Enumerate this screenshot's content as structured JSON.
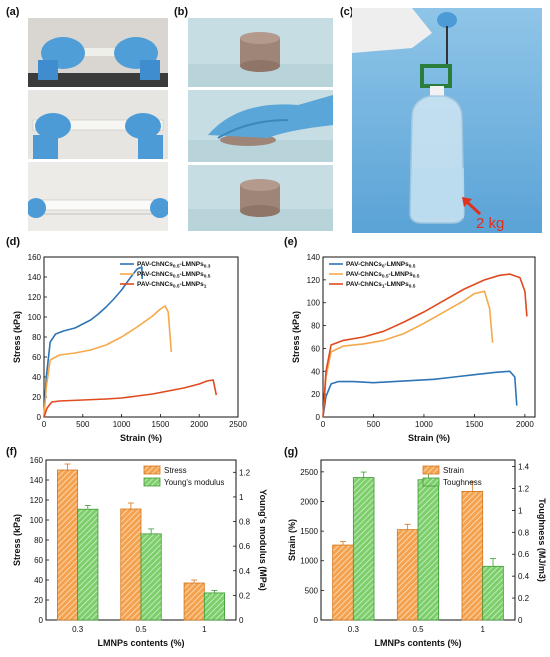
{
  "labels": {
    "a": "(a)",
    "b": "(b)",
    "c": "(c)",
    "d": "(d)",
    "e": "(e)",
    "f": "(f)",
    "g": "(g)"
  },
  "photo_c": {
    "weight_label": "2 kg"
  },
  "colors": {
    "blue": "#2e75b6",
    "orange": "#f5a94a",
    "red": "#e04a1f",
    "bar_orange": "#f4a24e",
    "bar_green": "#7ccf6a",
    "arrow_red": "#e0301e"
  },
  "chart_data": [
    {
      "id": "d",
      "type": "line",
      "xlabel": "Strain (%)",
      "ylabel": "Stress (kPa)",
      "xlim": [
        0,
        2500
      ],
      "ylim": [
        0,
        160
      ],
      "xticks": [
        0,
        500,
        1000,
        1500,
        2000,
        2500
      ],
      "yticks": [
        0,
        20,
        40,
        60,
        80,
        100,
        120,
        140,
        160
      ],
      "legend_position": "top-right",
      "series": [
        {
          "name": "PAV-ChNCs0.5-LMNPs0.3",
          "name_parts": [
            "PAV-ChNCs",
            "0.5",
            "-LMNPs",
            "0.3"
          ],
          "color": "#2e75b6",
          "x": [
            0,
            30,
            80,
            150,
            250,
            400,
            500,
            600,
            700,
            800,
            900,
            1000,
            1100,
            1200,
            1260,
            1265
          ],
          "y": [
            0,
            40,
            75,
            83,
            86,
            89,
            93,
            97,
            103,
            110,
            118,
            127,
            138,
            148,
            150,
            138
          ]
        },
        {
          "name": "PAV-ChNCs0.5-LMNPs0.5",
          "name_parts": [
            "PAV-ChNCs",
            "0.5",
            "-LMNPs",
            "0.5"
          ],
          "color": "#f5a94a",
          "x": [
            0,
            30,
            80,
            200,
            400,
            600,
            800,
            1000,
            1200,
            1400,
            1500,
            1560,
            1600,
            1640
          ],
          "y": [
            0,
            30,
            57,
            62,
            64,
            67,
            72,
            80,
            90,
            101,
            108,
            111,
            105,
            65
          ]
        },
        {
          "name": "PAV-ChNCs0.5-LMNPs1",
          "name_parts": [
            "PAV-ChNCs",
            "0.5",
            "-LMNPs",
            "1"
          ],
          "color": "#e04a1f",
          "x": [
            0,
            40,
            100,
            200,
            500,
            800,
            1000,
            1200,
            1400,
            1600,
            1800,
            2000,
            2100,
            2180,
            2220
          ],
          "y": [
            0,
            9,
            15,
            16,
            17,
            18,
            19,
            21,
            23,
            26,
            29,
            33,
            36,
            37,
            22
          ]
        }
      ]
    },
    {
      "id": "e",
      "type": "line",
      "xlabel": "Strain (%)",
      "ylabel": "Stress (kPa)",
      "xlim": [
        0,
        2100
      ],
      "ylim": [
        0,
        140
      ],
      "xticks": [
        0,
        500,
        1000,
        1500,
        2000
      ],
      "yticks": [
        0,
        20,
        40,
        60,
        80,
        100,
        120,
        140
      ],
      "legend_position": "top-left",
      "series": [
        {
          "name": "PAV-ChNCs0-LMNPs0.5",
          "name_parts": [
            "PAV-ChNCs",
            "0",
            "-LMNPs",
            "0.5"
          ],
          "color": "#2e75b6",
          "x": [
            0,
            30,
            80,
            150,
            300,
            500,
            700,
            900,
            1100,
            1300,
            1500,
            1700,
            1850,
            1900,
            1920
          ],
          "y": [
            0,
            18,
            29,
            31,
            31,
            30,
            31,
            32,
            33,
            35,
            37,
            39,
            40,
            35,
            10
          ]
        },
        {
          "name": "PAV-ChNCs0.5-LMNPs0.5",
          "name_parts": [
            "PAV-ChNCs",
            "0.5",
            "-LMNPs",
            "0.5"
          ],
          "color": "#f5a94a",
          "x": [
            0,
            30,
            80,
            200,
            400,
            600,
            800,
            1000,
            1200,
            1400,
            1500,
            1600,
            1650,
            1680
          ],
          "y": [
            0,
            35,
            57,
            62,
            64,
            67,
            73,
            82,
            92,
            102,
            108,
            110,
            95,
            65
          ]
        },
        {
          "name": "PAV-ChNCs1-LMNPs0.5",
          "name_parts": [
            "PAV-ChNCs",
            "1",
            "-LMNPs",
            "0.5"
          ],
          "color": "#e04a1f",
          "x": [
            0,
            30,
            80,
            200,
            400,
            600,
            800,
            1000,
            1200,
            1400,
            1600,
            1750,
            1850,
            1950,
            2000,
            2020
          ],
          "y": [
            0,
            40,
            63,
            67,
            70,
            75,
            83,
            92,
            102,
            112,
            120,
            124,
            125,
            122,
            110,
            88
          ]
        }
      ]
    },
    {
      "id": "f",
      "type": "bar",
      "xlabel": "LMNPs contents (%)",
      "ylabel": "Stress (kPa)",
      "ylabel_right": "Young's modulus (MPa)",
      "categories": [
        "0.3",
        "0.5",
        "1"
      ],
      "ylim": [
        0,
        160
      ],
      "ylim_right": [
        0,
        1.3
      ],
      "yticks": [
        0,
        20,
        40,
        60,
        80,
        100,
        120,
        140,
        160
      ],
      "yticks_right": [
        0,
        0.2,
        0.4,
        0.6,
        0.8,
        1.0,
        1.2
      ],
      "legend_position": "top-right",
      "series": [
        {
          "name": "Stress",
          "axis": "left",
          "color": "#f4a24e",
          "values": [
            150,
            111,
            37
          ],
          "errors": [
            6,
            6,
            3
          ]
        },
        {
          "name": "Young's modulus",
          "axis": "right",
          "color": "#7ccf6a",
          "values": [
            0.9,
            0.7,
            0.22
          ],
          "errors": [
            0.03,
            0.04,
            0.02
          ]
        }
      ]
    },
    {
      "id": "g",
      "type": "bar",
      "xlabel": "LMNPs contents (%)",
      "ylabel": "Strain (%)",
      "ylabel_right": "Toughness (MJ/m3)",
      "categories": [
        "0.3",
        "0.5",
        "1"
      ],
      "ylim": [
        0,
        2700
      ],
      "ylim_right": [
        0,
        1.46
      ],
      "yticks": [
        0,
        500,
        1000,
        1500,
        2000,
        2500
      ],
      "yticks_right": [
        0,
        0.2,
        0.4,
        0.6,
        0.8,
        1.0,
        1.2,
        1.4
      ],
      "legend_position": "top-right",
      "series": [
        {
          "name": "Strain",
          "axis": "left",
          "color": "#f4a24e",
          "values": [
            1265,
            1525,
            2170
          ],
          "errors": [
            60,
            90,
            160
          ]
        },
        {
          "name": "Toughness",
          "axis": "right",
          "color": "#7ccf6a",
          "values": [
            1.3,
            1.28,
            0.49
          ],
          "errors": [
            0.05,
            0.07,
            0.07
          ]
        }
      ]
    }
  ]
}
